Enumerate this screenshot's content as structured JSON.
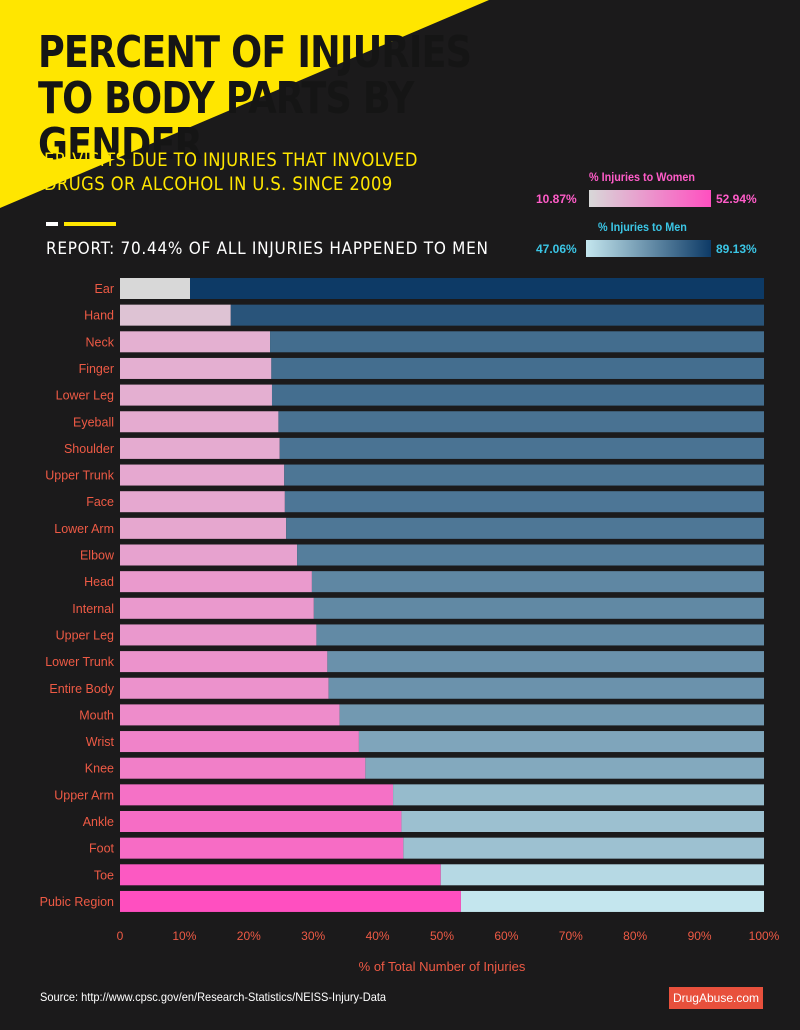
{
  "title": "PERCENT OF INJURIES TO BODY PARTS BY GENDER",
  "subtitle": "ER VISITS DUE TO INJURIES THAT INVOLVED DRUGS OR ALCOHOL IN U.S. SINCE 2009",
  "report": "REPORT: 70.44% OF ALL INJURIES HAPPENED TO MEN",
  "legend": {
    "women": {
      "title": "% Injuries to Women",
      "min": "10.87%",
      "max": "52.94%",
      "color_low": "#d8d8d8",
      "color_high": "#ff4fc0"
    },
    "men": {
      "title": "% Injuries to Men",
      "min": "47.06%",
      "max": "89.13%",
      "color_low": "#c4e6ee",
      "color_high": "#0d3a66"
    }
  },
  "source": "Source: http://www.cpsc.gov/en/Research-Statistics/NEISS-Injury-Data",
  "brand": "DrugAbuse.com",
  "colors": {
    "background": "#1b1a1b",
    "accent_yellow": "#ffe600",
    "label_red": "#ee5a45"
  },
  "chart_data": {
    "type": "bar",
    "orientation": "horizontal",
    "stacked": true,
    "categories": [
      "Ear",
      "Hand",
      "Neck",
      "Finger",
      "Lower Leg",
      "Eyeball",
      "Shoulder",
      "Upper Trunk",
      "Face",
      "Lower Arm",
      "Elbow",
      "Head",
      "Internal",
      "Upper Leg",
      "Lower Trunk",
      "Entire Body",
      "Mouth",
      "Wrist",
      "Knee",
      "Upper Arm",
      "Ankle",
      "Foot",
      "Toe",
      "Pubic Region"
    ],
    "series": [
      {
        "name": "% Injuries to Women",
        "values": [
          10.87,
          17.2,
          23.3,
          23.5,
          23.6,
          24.6,
          24.8,
          25.5,
          25.6,
          25.8,
          27.5,
          29.8,
          30.1,
          30.5,
          32.2,
          32.4,
          34.1,
          37.1,
          38.1,
          42.4,
          43.7,
          44.0,
          49.8,
          52.94
        ]
      },
      {
        "name": "% Injuries to Men",
        "values": [
          89.13,
          82.8,
          76.7,
          76.5,
          76.4,
          75.4,
          75.2,
          74.5,
          74.4,
          74.2,
          72.5,
          70.2,
          69.9,
          69.5,
          67.8,
          67.6,
          65.9,
          62.9,
          61.9,
          57.6,
          56.3,
          56.0,
          50.2,
          47.06
        ]
      }
    ],
    "x_ticks": [
      "0",
      "10%",
      "20%",
      "30%",
      "40%",
      "50%",
      "60%",
      "70%",
      "80%",
      "90%",
      "100%"
    ],
    "xlim": [
      0,
      100
    ],
    "xlabel": "% of Total Number of Injuries",
    "grid": false,
    "legend_position": "top-right"
  }
}
